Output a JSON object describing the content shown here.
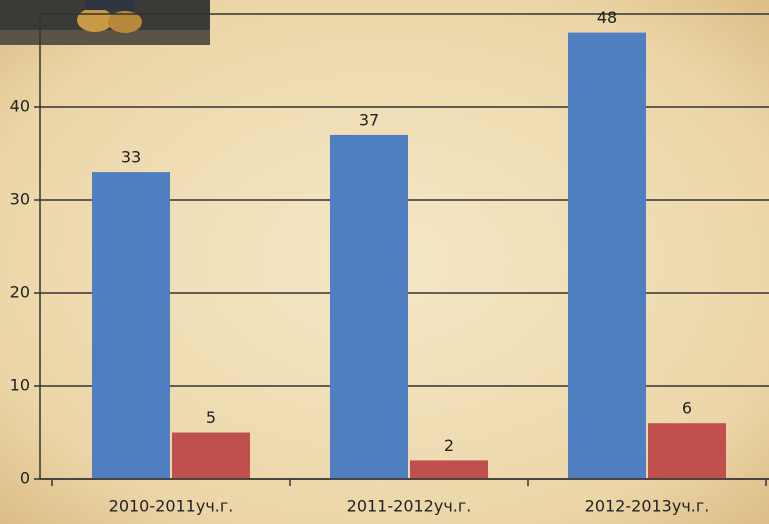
{
  "chart_data": {
    "type": "bar",
    "categories": [
      "2010-2011уч.г.",
      "2011-2012уч.г.",
      "2012-2013уч.г."
    ],
    "series": [
      {
        "color": "#4f7fc0",
        "values": [
          33,
          37,
          48
        ]
      },
      {
        "color": "#c0504d",
        "values": [
          5,
          2,
          6
        ]
      }
    ],
    "ylim": [
      0,
      50
    ],
    "yticks": [
      0,
      10,
      20,
      30,
      40
    ],
    "grid": true
  }
}
